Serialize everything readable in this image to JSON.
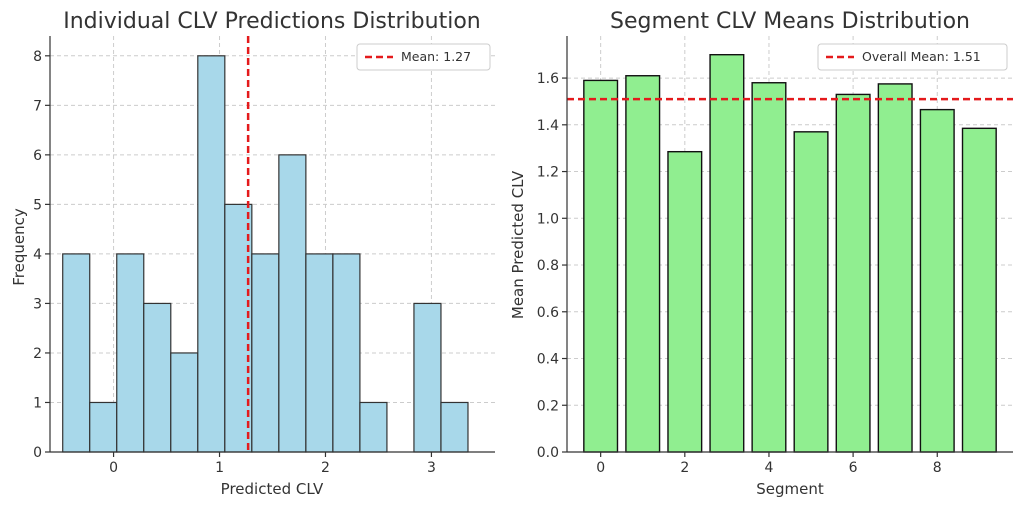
{
  "chart_data": [
    {
      "type": "bar",
      "title": "Individual CLV Predictions Distribution",
      "xlabel": "Predicted CLV",
      "ylabel": "Frequency",
      "xlim": [
        -0.6,
        3.6
      ],
      "ylim": [
        0,
        8.4
      ],
      "xticks": [
        0,
        1,
        2,
        3
      ],
      "yticks": [
        0,
        1,
        2,
        3,
        4,
        5,
        6,
        7,
        8
      ],
      "bin_edges": [
        -0.48,
        -0.225,
        0.03,
        0.285,
        0.54,
        0.795,
        1.05,
        1.305,
        1.56,
        1.815,
        2.07,
        2.325,
        2.58,
        2.835,
        3.09,
        3.345
      ],
      "counts": [
        4,
        1,
        4,
        3,
        2,
        8,
        5,
        4,
        6,
        4,
        4,
        1,
        0,
        3,
        1
      ],
      "bar_color": "#a8d8ea",
      "mean_line": {
        "value": 1.27,
        "label": "Mean: 1.27",
        "color": "#e41a1c"
      },
      "legend": "top-right",
      "grid": true
    },
    {
      "type": "bar",
      "title": "Segment CLV Means Distribution",
      "xlabel": "Segment",
      "ylabel": "Mean Predicted CLV",
      "xlim": [
        -0.8,
        9.8
      ],
      "ylim": [
        0,
        1.78
      ],
      "xticks": [
        0,
        2,
        4,
        6,
        8
      ],
      "yticks": [
        0.0,
        0.2,
        0.4,
        0.6,
        0.8,
        1.0,
        1.2,
        1.4,
        1.6
      ],
      "categories": [
        0,
        1,
        2,
        3,
        4,
        5,
        6,
        7,
        8,
        9
      ],
      "values": [
        1.59,
        1.61,
        1.285,
        1.7,
        1.58,
        1.37,
        1.53,
        1.575,
        1.465,
        1.385
      ],
      "bar_color": "#90ee90",
      "mean_line": {
        "value": 1.51,
        "label": "Overall Mean: 1.51",
        "color": "#e41a1c"
      },
      "legend": "top-right",
      "grid": true
    }
  ]
}
